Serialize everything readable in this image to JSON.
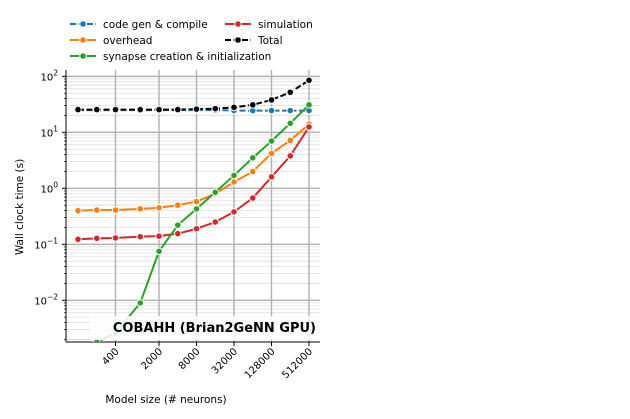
{
  "chart_data": {
    "type": "line",
    "annotation": "COBAHH (Brian2GeNN GPU)",
    "xlabel": "Model size (# neurons)",
    "ylabel": "Wall clock time (s)",
    "x_scale": "log2",
    "y_scale": "log10",
    "x": [
      100,
      200,
      400,
      1000,
      2000,
      4000,
      8000,
      16000,
      32000,
      64000,
      128000,
      256000,
      512000
    ],
    "x_tick_labels": [
      "400",
      "2000",
      "8000",
      "32000",
      "128000",
      "512000"
    ],
    "x_tick_values": [
      400,
      2000,
      8000,
      32000,
      128000,
      512000
    ],
    "y_tick_labels": [
      {
        "base": "10",
        "exp": "−2",
        "value": 0.01
      },
      {
        "base": "10",
        "exp": "−1",
        "value": 0.1
      },
      {
        "base": "10",
        "exp": "0",
        "value": 1
      },
      {
        "base": "10",
        "exp": "1",
        "value": 10
      },
      {
        "base": "10",
        "exp": "2",
        "value": 100
      }
    ],
    "ylim": [
      0.0018,
      130
    ],
    "grid": true,
    "legend_placement": "top-left, above plot, 2 columns",
    "series": [
      {
        "name": "code gen & compile",
        "color": "#1f77b4",
        "linestyle": "dashed",
        "values": [
          25,
          25,
          25,
          25,
          25,
          25,
          25,
          25,
          24.5,
          24.5,
          24.5,
          24.5,
          24.5
        ]
      },
      {
        "name": "overhead",
        "color": "#ff7f0e",
        "linestyle": "solid",
        "values": [
          0.4,
          0.41,
          0.41,
          0.43,
          0.45,
          0.5,
          0.58,
          0.8,
          1.3,
          2.0,
          4.2,
          7.2,
          14
        ]
      },
      {
        "name": "synapse creation & initialization",
        "color": "#2ca02c",
        "linestyle": "solid",
        "values": [
          0.0012,
          0.0018,
          0.0026,
          0.009,
          0.075,
          0.22,
          0.43,
          0.85,
          1.7,
          3.5,
          7.0,
          14.5,
          31
        ]
      },
      {
        "name": "simulation",
        "color": "#d62728",
        "linestyle": "solid",
        "values": [
          0.123,
          0.128,
          0.13,
          0.137,
          0.14,
          0.155,
          0.19,
          0.25,
          0.38,
          0.67,
          1.6,
          3.8,
          12.5
        ]
      },
      {
        "name": "Total",
        "color": "#000000",
        "linestyle": "dashed",
        "values": [
          25.5,
          25.5,
          25.5,
          25.5,
          25.5,
          25.5,
          26,
          26.5,
          28,
          31,
          38,
          52,
          85
        ]
      }
    ]
  }
}
